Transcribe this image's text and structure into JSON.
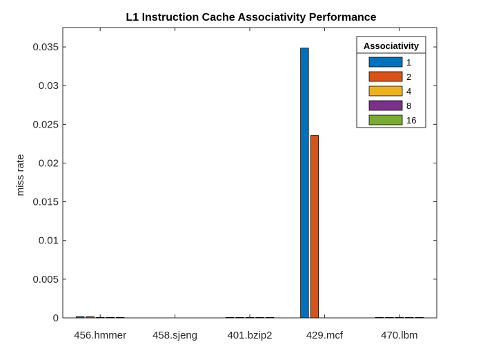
{
  "chart_data": {
    "type": "bar",
    "title": "L1 Instruction Cache Associativity Performance",
    "xlabel": "",
    "ylabel": "miss rate",
    "ylim": [
      0,
      0.0375
    ],
    "yticks": [
      "0",
      "0.005",
      "0.01",
      "0.015",
      "0.02",
      "0.025",
      "0.03",
      "0.035"
    ],
    "categories": [
      "456.hmmer",
      "458.sjeng",
      "401.bzip2",
      "429.mcf",
      "470.lbm"
    ],
    "legend_title": "Associativity",
    "legend_position": "top-right",
    "grid": false,
    "series": [
      {
        "name": "1",
        "color": "#0072BD",
        "values": [
          0.00016,
          0.0,
          5e-05,
          0.03485,
          5e-05
        ]
      },
      {
        "name": "2",
        "color": "#D95319",
        "values": [
          0.00016,
          0.0,
          5e-05,
          0.02355,
          5e-05
        ]
      },
      {
        "name": "4",
        "color": "#EDB120",
        "values": [
          6e-05,
          0.0,
          5e-05,
          0.0,
          5e-05
        ]
      },
      {
        "name": "8",
        "color": "#7E2F8E",
        "values": [
          6e-05,
          0.0,
          5e-05,
          0.0,
          5e-05
        ]
      },
      {
        "name": "16",
        "color": "#77AC30",
        "values": [
          6e-05,
          0.0,
          5e-05,
          0.0,
          5e-05
        ]
      }
    ]
  }
}
